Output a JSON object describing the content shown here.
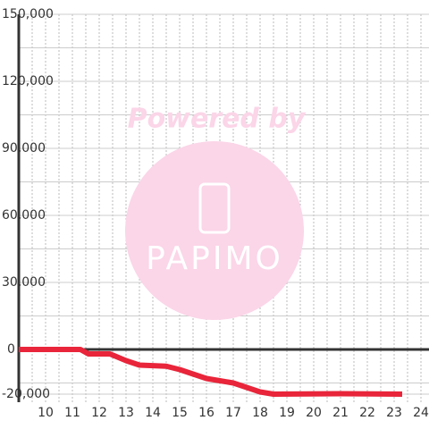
{
  "chart_data": {
    "type": "line",
    "watermark": [
      "Powered by",
      "PAPIMO"
    ],
    "x": [
      9,
      11.3,
      11.6,
      12.4,
      13,
      13.5,
      14.5,
      15,
      15.5,
      16,
      16.5,
      17,
      17.5,
      18,
      18.5,
      21,
      23.3
    ],
    "series": [
      {
        "color": "#e8253a",
        "values": [
          0,
          0,
          -2000,
          -2000,
          -5000,
          -7000,
          -7500,
          -9000,
          -11000,
          -13000,
          -14000,
          -15000,
          -17000,
          -19000,
          -20000,
          -19800,
          -20000
        ]
      }
    ],
    "xlim": [
      9,
      24.3
    ],
    "xticks": [
      10,
      11,
      12,
      13,
      14,
      15,
      16,
      17,
      18,
      19,
      20,
      21,
      22,
      23,
      24
    ],
    "minor_xticks": [
      9.5,
      10,
      10.5,
      11,
      11.5,
      12,
      12.5,
      13,
      13.5,
      14,
      14.5,
      15,
      15.5,
      16,
      16.5,
      17,
      17.5,
      18,
      18.5,
      19,
      19.5,
      20,
      20.5,
      21,
      21.5,
      22,
      22.5,
      23,
      23.5,
      24
    ],
    "ylim": [
      -20000,
      150000
    ],
    "yticks": [
      {
        "value": -20000,
        "label": "-20,000"
      },
      0,
      {
        "value": 30000,
        "label": "30,000"
      },
      {
        "value": 60000,
        "label": "60,000"
      },
      {
        "value": 90000,
        "label": "90,000"
      },
      {
        "value": 120000,
        "label": "120,000"
      },
      {
        "value": 150000,
        "label": "150,000"
      }
    ],
    "minor_yticks": [
      -15000,
      15000,
      45000,
      75000,
      105000,
      135000
    ],
    "grid": true
  }
}
